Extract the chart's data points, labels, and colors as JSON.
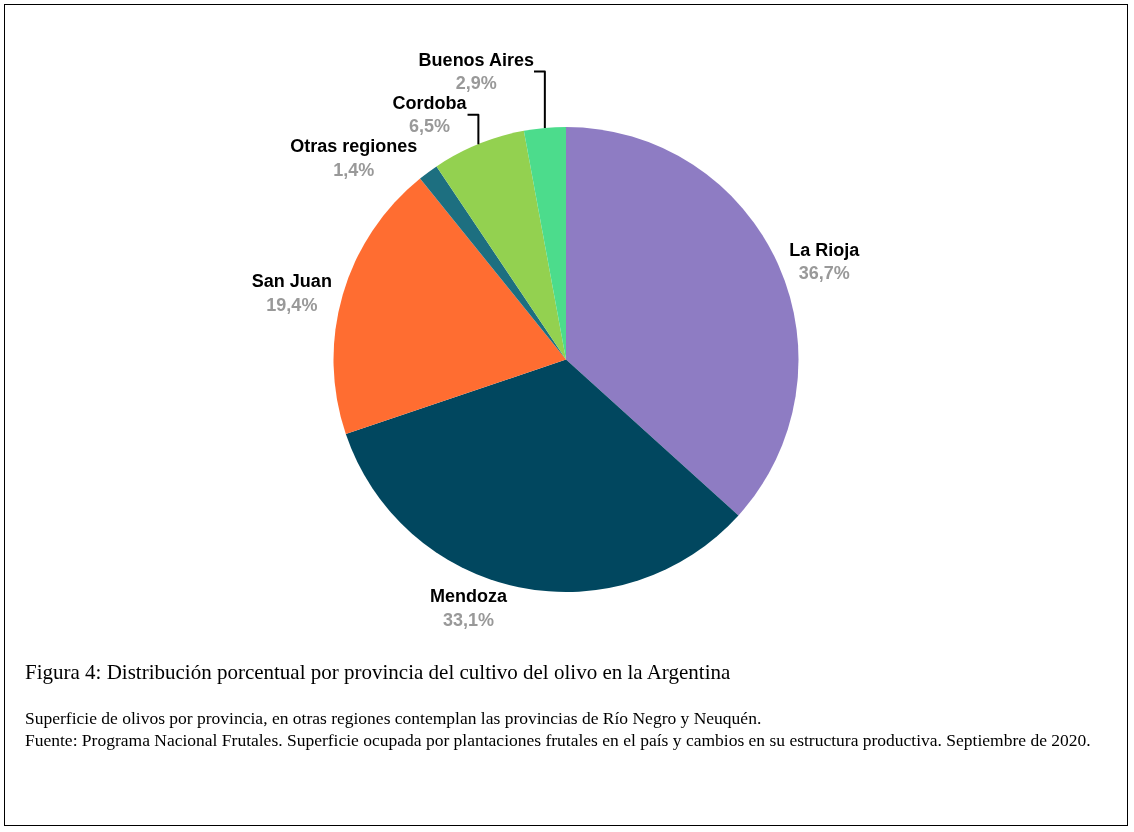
{
  "chart_data": {
    "type": "pie",
    "title": "Figura 4: Distribución porcentual por provincia del cultivo del olivo en la Argentina",
    "categories": [
      "La Rioja",
      "Mendoza",
      "San Juan",
      "Otras regiones",
      "Cordoba",
      "Buenos Aires"
    ],
    "values": [
      36.7,
      33.1,
      19.4,
      1.4,
      6.5,
      2.9
    ],
    "value_labels": [
      "36,7%",
      "33,1%",
      "19,4%",
      "1,4%",
      "6,5%",
      "2,9%"
    ],
    "colors": [
      "#8e7cc3",
      "#01475f",
      "#ff6d31",
      "#1d6f80",
      "#93d150",
      "#4cdc8c"
    ],
    "legend": false,
    "annotations": [
      "Superficie de olivos por provincia, en otras regiones contemplan las provincias de Río Negro y Neuquén.",
      "Fuente:  Programa Nacional Frutales. Superficie ocupada por plantaciones frutales en el país y cambios en su estructura productiva. Septiembre de 2020."
    ]
  }
}
